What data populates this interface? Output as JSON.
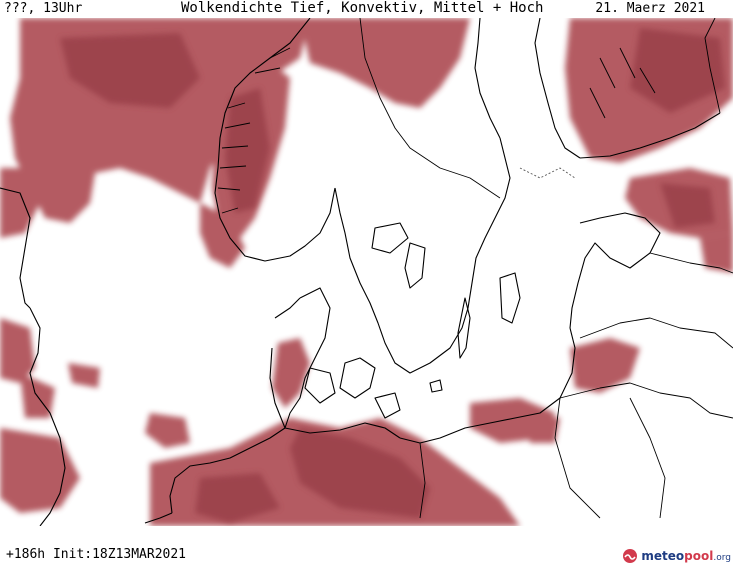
{
  "header": {
    "left": "???, 13Uhr",
    "title": "Wolkendichte  Tief, Konvektiv, Mittel + Hoch",
    "date": "21. Maerz 2021"
  },
  "footer": {
    "run": "+186h  Init:18Z13MAR2021",
    "brand_part1": "meteo",
    "brand_part2": "pool",
    "brand_part3": ".org"
  },
  "colors": {
    "cloud_fill": "#b0525a",
    "cloud_dense": "#9a4048",
    "coastline": "#000000",
    "background": "#ffffff",
    "brand_blue": "#1e3c82",
    "brand_red": "#d23a4c"
  },
  "icons": [
    "meteopool-logo-icon"
  ]
}
